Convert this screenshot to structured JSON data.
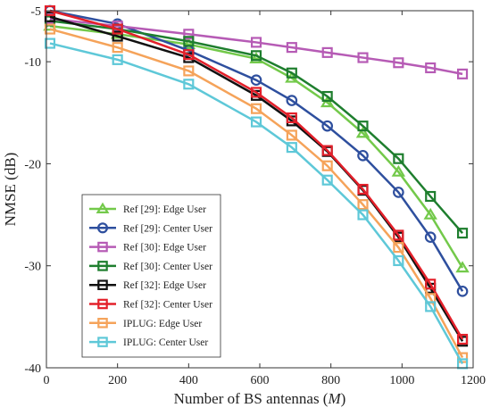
{
  "chart_data": {
    "type": "line",
    "title": "",
    "xlabel": "Number of BS antennas (M)",
    "xlabel_prefix": "Number of BS antennas (",
    "xlabel_var": "M",
    "xlabel_suffix": ")",
    "ylabel": "NMSE (dB)",
    "xlim": [
      0,
      1200
    ],
    "ylim": [
      -40,
      -5
    ],
    "xticks": [
      0,
      200,
      400,
      600,
      800,
      1000,
      1200
    ],
    "yticks": [
      -5,
      -10,
      -20,
      -30,
      -40
    ],
    "grid": false,
    "legend_position": "bottom-left",
    "x": [
      10,
      200,
      400,
      590,
      690,
      790,
      890,
      990,
      1080,
      1170
    ],
    "series": [
      {
        "name": "Ref [29]: Edge User",
        "color": "#73c94a",
        "marker": "triangle",
        "values": [
          -6.5,
          -7.3,
          -8.3,
          -9.7,
          -11.6,
          -14.0,
          -17.0,
          -20.8,
          -25.0,
          -30.2
        ]
      },
      {
        "name": "Ref [29]: Center User",
        "color": "#2e4f9e",
        "marker": "circle",
        "values": [
          -5.0,
          -6.3,
          -8.9,
          -11.8,
          -13.8,
          -16.3,
          -19.2,
          -22.8,
          -27.2,
          -32.5
        ]
      },
      {
        "name": "Ref [30]: Edge User",
        "color": "#b65bb5",
        "marker": "square",
        "values": [
          -5.8,
          -6.5,
          -7.3,
          -8.1,
          -8.6,
          -9.1,
          -9.6,
          -10.1,
          -10.6,
          -11.2
        ]
      },
      {
        "name": "Ref [30]: Center User",
        "color": "#1e7e2e",
        "marker": "square",
        "values": [
          -6.0,
          -6.8,
          -8.0,
          -9.4,
          -11.1,
          -13.4,
          -16.3,
          -19.5,
          -23.2,
          -26.8
        ]
      },
      {
        "name": "Ref [32]: Edge User",
        "color": "#111111",
        "marker": "square",
        "values": [
          -5.6,
          -7.5,
          -9.6,
          -13.3,
          -15.8,
          -18.8,
          -22.6,
          -27.2,
          -32.2,
          -37.4
        ]
      },
      {
        "name": "Ref [32]: Center User",
        "color": "#e3202a",
        "marker": "square",
        "values": [
          -5.0,
          -6.8,
          -9.3,
          -13.0,
          -15.5,
          -18.7,
          -22.5,
          -27.0,
          -31.8,
          -37.2
        ]
      },
      {
        "name": "IPLUG: Edge User",
        "color": "#f5a35a",
        "marker": "square",
        "values": [
          -6.8,
          -8.6,
          -10.9,
          -14.6,
          -17.2,
          -20.2,
          -24.0,
          -28.2,
          -33.2,
          -39.0
        ]
      },
      {
        "name": "IPLUG: Center User",
        "color": "#5ec8d8",
        "marker": "square",
        "values": [
          -8.2,
          -9.8,
          -12.2,
          -15.9,
          -18.4,
          -21.6,
          -25.0,
          -29.5,
          -34.0,
          -39.6
        ]
      }
    ]
  }
}
